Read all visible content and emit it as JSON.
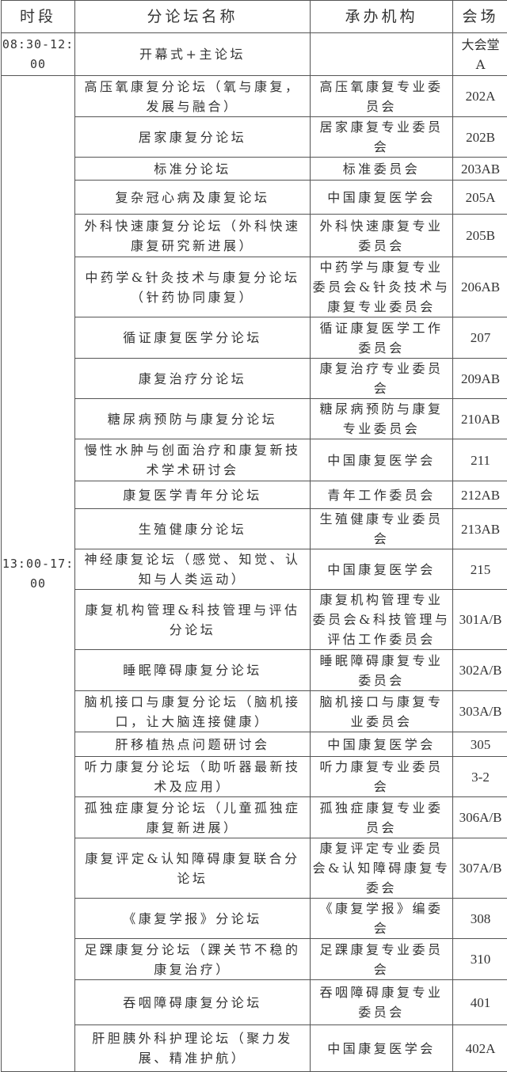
{
  "header": {
    "time": "时段",
    "forum": "分论坛名称",
    "org": "承办机构",
    "venue": "会场"
  },
  "morning": {
    "time": "08:30-12:00",
    "forum": "开幕式+主论坛",
    "org": "",
    "venue": "大会堂A"
  },
  "afternoon_time": "13:00-17:00",
  "rows": [
    {
      "forum": "高压氧康复分论坛（氧与康复，发展与融合）",
      "org": "高压氧康复专业委员会",
      "venue": "202A"
    },
    {
      "forum": "居家康复分论坛",
      "org": "居家康复专业委员会",
      "venue": "202B"
    },
    {
      "forum": "标准分论坛",
      "org": "标准委员会",
      "venue": "203AB"
    },
    {
      "forum": "复杂冠心病及康复论坛",
      "org": "中国康复医学会",
      "venue": "205A"
    },
    {
      "forum": "外科快速康复分论坛（外科快速康复研究新进展）",
      "org": "外科快速康复专业委员会",
      "venue": "205B"
    },
    {
      "forum": "中药学&针灸技术与康复分论坛（针药协同康复）",
      "org": "中药学与康复专业委员会&针灸技术与康复专业委员会",
      "venue": "206AB"
    },
    {
      "forum": "循证康复医学分论坛",
      "org": "循证康复医学工作委员会",
      "venue": "207"
    },
    {
      "forum": "康复治疗分论坛",
      "org": "康复治疗专业委员会",
      "venue": "209AB"
    },
    {
      "forum": "糖尿病预防与康复分论坛",
      "org": "糖尿病预防与康复专业委员会",
      "venue": "210AB"
    },
    {
      "forum": "慢性水肿与创面治疗和康复新技术学术研讨会",
      "org": "中国康复医学会",
      "venue": "211"
    },
    {
      "forum": "康复医学青年分论坛",
      "org": "青年工作委员会",
      "venue": "212AB"
    },
    {
      "forum": "生殖健康分论坛",
      "org": "生殖健康专业委员会",
      "venue": "213AB"
    },
    {
      "forum": "神经康复论坛（感觉、知觉、认知与人类运动）",
      "org": "中国康复医学会",
      "venue": "215"
    },
    {
      "forum": "康复机构管理&科技管理与评估分论坛",
      "org": "康复机构管理专业委员会&科技管理与评估工作委员会",
      "venue": "301A/B"
    },
    {
      "forum": "睡眠障碍康复分论坛",
      "org": "睡眠障碍康复专业委员会",
      "venue": "302A/B"
    },
    {
      "forum": "脑机接口与康复分论坛（脑机接口，让大脑连接健康）",
      "org": "脑机接口与康复专业委员会",
      "venue": "303A/B"
    },
    {
      "forum": "肝移植热点问题研讨会",
      "org": "中国康复医学会",
      "venue": "305"
    },
    {
      "forum": "听力康复分论坛（助听器最新技术及应用）",
      "org": "听力康复专业委员会",
      "venue": "3-2"
    },
    {
      "forum": "孤独症康复分论坛（儿童孤独症康复新进展）",
      "org": "孤独症康复专业委员会",
      "venue": "306A/B"
    },
    {
      "forum": "康复评定&认知障碍康复联合分论坛",
      "org": "康复评定专业委员会&认知障碍康复专委会",
      "venue": "307A/B"
    },
    {
      "forum": "《康复学报》分论坛",
      "org": "《康复学报》编委会",
      "venue": "308"
    },
    {
      "forum": "足踝康复分论坛（踝关节不稳的康复治疗）",
      "org": "足踝康复专业委员会",
      "venue": "310"
    },
    {
      "forum": "吞咽障碍康复分论坛",
      "org": "吞咽障碍康复专业委员会",
      "venue": "401"
    },
    {
      "forum": "肝胆胰外科护理论坛（聚力发展、精准护航）",
      "org": "中国康复医学会",
      "venue": "402A"
    }
  ]
}
